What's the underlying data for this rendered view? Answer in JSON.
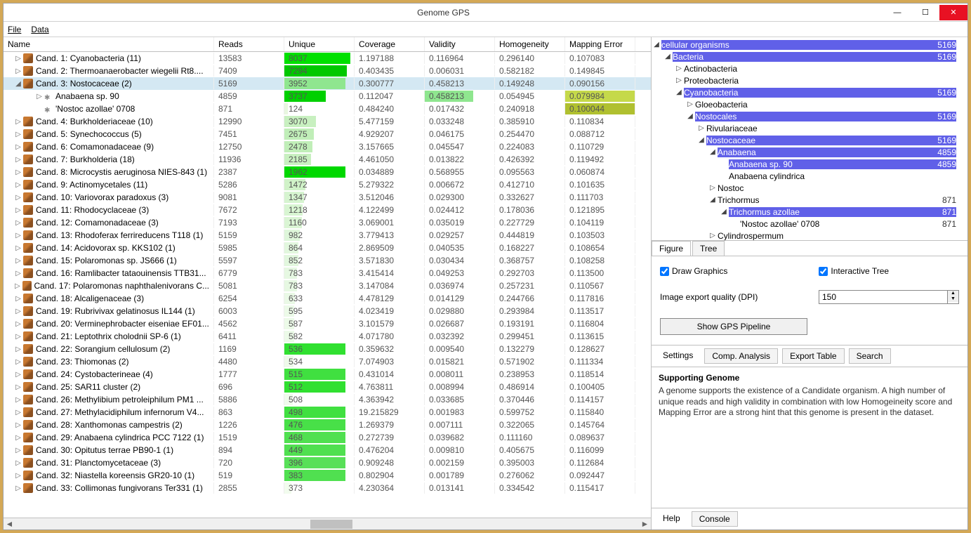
{
  "window": {
    "title": "Genome GPS"
  },
  "menu": {
    "file": "File",
    "data": "Data"
  },
  "columns": {
    "name": "Name",
    "reads": "Reads",
    "unique": "Unique",
    "coverage": "Coverage",
    "validity": "Validity",
    "homogeneity": "Homogeneity",
    "mapping": "Mapping Error"
  },
  "rows": [
    {
      "indent": 0,
      "exp": "▷",
      "icon": "dna",
      "name": "Cand. 1: Cyanobacteria (11)",
      "reads": "13583",
      "unique": "8037",
      "uniqueBg": "#00e000",
      "uniquePct": 95,
      "coverage": "1.197188",
      "validity": "0.116964",
      "homogeneity": "0.296140",
      "mapping": "0.107083"
    },
    {
      "indent": 0,
      "exp": "▷",
      "icon": "dna",
      "name": "Cand. 2: Thermoanaerobacter wiegelii Rt8....",
      "reads": "7409",
      "unique": "7294",
      "uniqueBg": "#00c800",
      "uniquePct": 90,
      "coverage": "0.403435",
      "validity": "0.006031",
      "homogeneity": "0.582182",
      "mapping": "0.149845"
    },
    {
      "indent": 0,
      "exp": "◢",
      "icon": "dna",
      "name": "Cand. 3: Nostocaceae (2)",
      "reads": "5169",
      "unique": "3952",
      "uniqueBg": "#8fe68f",
      "uniquePct": 88,
      "coverage": "0.300777",
      "validity": "0.458213",
      "homogeneity": "0.149248",
      "mapping": "0.090156",
      "selected": true
    },
    {
      "indent": 1,
      "exp": "▷",
      "icon": "leaf",
      "name": "Anabaena sp. 90",
      "reads": "4859",
      "unique": "3737",
      "uniqueBg": "#00d000",
      "uniquePct": 60,
      "coverage": "0.112047",
      "validity": "0.458213",
      "validityBg": "#8fe68f",
      "validityPct": 70,
      "homogeneity": "0.054945",
      "mapping": "0.079984",
      "mappingBg": "#c5d94a",
      "mappingPct": 100
    },
    {
      "indent": 1,
      "exp": "",
      "icon": "leaf",
      "name": "'Nostoc azollae' 0708",
      "reads": "871",
      "unique": "124",
      "uniqueBg": "#e8f7e0",
      "uniquePct": 5,
      "coverage": "0.484240",
      "validity": "0.017432",
      "homogeneity": "0.240918",
      "mapping": "0.100044",
      "mappingBg": "#b0c030",
      "mappingPct": 100
    },
    {
      "indent": 0,
      "exp": "▷",
      "icon": "dna",
      "name": "Cand. 4: Burkholderiaceae (10)",
      "reads": "12990",
      "unique": "3070",
      "uniqueBg": "#c8f0c0",
      "uniquePct": 45,
      "coverage": "5.477159",
      "validity": "0.033248",
      "homogeneity": "0.385910",
      "mapping": "0.110834"
    },
    {
      "indent": 0,
      "exp": "▷",
      "icon": "dna",
      "name": "Cand. 5: Synechococcus (5)",
      "reads": "7451",
      "unique": "2675",
      "uniqueBg": "#c0eeb8",
      "uniquePct": 42,
      "coverage": "4.929207",
      "validity": "0.046175",
      "homogeneity": "0.254470",
      "mapping": "0.088712"
    },
    {
      "indent": 0,
      "exp": "▷",
      "icon": "dna",
      "name": "Cand. 6: Comamonadaceae (9)",
      "reads": "12750",
      "unique": "2478",
      "uniqueBg": "#c0eeb8",
      "uniquePct": 40,
      "coverage": "3.157665",
      "validity": "0.045547",
      "homogeneity": "0.224083",
      "mapping": "0.110729"
    },
    {
      "indent": 0,
      "exp": "▷",
      "icon": "dna",
      "name": "Cand. 7: Burkholderia (18)",
      "reads": "11936",
      "unique": "2185",
      "uniqueBg": "#c8f0c0",
      "uniquePct": 38,
      "coverage": "4.461050",
      "validity": "0.013822",
      "homogeneity": "0.426392",
      "mapping": "0.119492"
    },
    {
      "indent": 0,
      "exp": "▷",
      "icon": "dna",
      "name": "Cand. 8: Microcystis aeruginosa NIES-843 (1)",
      "reads": "2387",
      "unique": "1962",
      "uniqueBg": "#00d800",
      "uniquePct": 88,
      "coverage": "0.034889",
      "validity": "0.568955",
      "homogeneity": "0.095563",
      "mapping": "0.060874"
    },
    {
      "indent": 0,
      "exp": "▷",
      "icon": "dna",
      "name": "Cand. 9: Actinomycetales (11)",
      "reads": "5286",
      "unique": "1472",
      "uniqueBg": "#d0f2c8",
      "uniquePct": 30,
      "coverage": "5.279322",
      "validity": "0.006672",
      "homogeneity": "0.412710",
      "mapping": "0.101635"
    },
    {
      "indent": 0,
      "exp": "▷",
      "icon": "dna",
      "name": "Cand. 10: Variovorax paradoxus (3)",
      "reads": "9081",
      "unique": "1347",
      "uniqueBg": "#d6f4d0",
      "uniquePct": 28,
      "coverage": "3.512046",
      "validity": "0.029300",
      "homogeneity": "0.332627",
      "mapping": "0.111703"
    },
    {
      "indent": 0,
      "exp": "▷",
      "icon": "dna",
      "name": "Cand. 11: Rhodocyclaceae (3)",
      "reads": "7672",
      "unique": "1218",
      "uniqueBg": "#d8f5d2",
      "uniquePct": 26,
      "coverage": "4.122499",
      "validity": "0.024412",
      "homogeneity": "0.178036",
      "mapping": "0.121895"
    },
    {
      "indent": 0,
      "exp": "▷",
      "icon": "dna",
      "name": "Cand. 12: Comamonadaceae (3)",
      "reads": "7193",
      "unique": "1160",
      "uniqueBg": "#daf5d4",
      "uniquePct": 25,
      "coverage": "3.069001",
      "validity": "0.035019",
      "homogeneity": "0.227729",
      "mapping": "0.104119"
    },
    {
      "indent": 0,
      "exp": "▷",
      "icon": "dna",
      "name": "Cand. 13: Rhodoferax ferrireducens T118 (1)",
      "reads": "5159",
      "unique": "982",
      "uniqueBg": "#def6da",
      "uniquePct": 22,
      "coverage": "3.779413",
      "validity": "0.029257",
      "homogeneity": "0.444819",
      "mapping": "0.103503"
    },
    {
      "indent": 0,
      "exp": "▷",
      "icon": "dna",
      "name": "Cand. 14: Acidovorax sp. KKS102 (1)",
      "reads": "5985",
      "unique": "864",
      "uniqueBg": "#e2f7de",
      "uniquePct": 20,
      "coverage": "2.869509",
      "validity": "0.040535",
      "homogeneity": "0.168227",
      "mapping": "0.108654"
    },
    {
      "indent": 0,
      "exp": "▷",
      "icon": "dna",
      "name": "Cand. 15: Polaromonas sp. JS666 (1)",
      "reads": "5597",
      "unique": "852",
      "uniqueBg": "#e2f7de",
      "uniquePct": 20,
      "coverage": "3.571830",
      "validity": "0.030434",
      "homogeneity": "0.368757",
      "mapping": "0.108258"
    },
    {
      "indent": 0,
      "exp": "▷",
      "icon": "dna",
      "name": "Cand. 16: Ramlibacter tataouinensis TTB31...",
      "reads": "6779",
      "unique": "783",
      "uniqueBg": "#e6f8e2",
      "uniquePct": 18,
      "coverage": "3.415414",
      "validity": "0.049253",
      "homogeneity": "0.292703",
      "mapping": "0.113500"
    },
    {
      "indent": 0,
      "exp": "▷",
      "icon": "dna",
      "name": "Cand. 17: Polaromonas naphthalenivorans C...",
      "reads": "5081",
      "unique": "783",
      "uniqueBg": "#e6f8e2",
      "uniquePct": 18,
      "coverage": "3.147084",
      "validity": "0.036974",
      "homogeneity": "0.257231",
      "mapping": "0.110567"
    },
    {
      "indent": 0,
      "exp": "▷",
      "icon": "dna",
      "name": "Cand. 18: Alcaligenaceae (3)",
      "reads": "6254",
      "unique": "633",
      "uniqueBg": "#eaf9e6",
      "uniquePct": 15,
      "coverage": "4.478129",
      "validity": "0.014129",
      "homogeneity": "0.244766",
      "mapping": "0.117816"
    },
    {
      "indent": 0,
      "exp": "▷",
      "icon": "dna",
      "name": "Cand. 19: Rubrivivax gelatinosus IL144 (1)",
      "reads": "6003",
      "unique": "595",
      "uniqueBg": "#ecfae8",
      "uniquePct": 14,
      "coverage": "4.023419",
      "validity": "0.029880",
      "homogeneity": "0.293984",
      "mapping": "0.113517"
    },
    {
      "indent": 0,
      "exp": "▷",
      "icon": "dna",
      "name": "Cand. 20: Verminephrobacter eiseniae EF01...",
      "reads": "4562",
      "unique": "587",
      "uniqueBg": "#ecfae8",
      "uniquePct": 14,
      "coverage": "3.101579",
      "validity": "0.026687",
      "homogeneity": "0.193191",
      "mapping": "0.116804"
    },
    {
      "indent": 0,
      "exp": "▷",
      "icon": "dna",
      "name": "Cand. 21: Leptothrix cholodnii SP-6 (1)",
      "reads": "6411",
      "unique": "582",
      "uniqueBg": "#ecfae8",
      "uniquePct": 14,
      "coverage": "4.071780",
      "validity": "0.032392",
      "homogeneity": "0.299451",
      "mapping": "0.113615"
    },
    {
      "indent": 0,
      "exp": "▷",
      "icon": "dna",
      "name": "Cand. 22: Sorangium cellulosum (2)",
      "reads": "1169",
      "unique": "536",
      "uniqueBg": "#30e030",
      "uniquePct": 88,
      "coverage": "0.359632",
      "validity": "0.009540",
      "homogeneity": "0.132279",
      "mapping": "0.128627"
    },
    {
      "indent": 0,
      "exp": "▷",
      "icon": "dna",
      "name": "Cand. 23: Thiomonas (2)",
      "reads": "4480",
      "unique": "534",
      "uniqueBg": "#eefaea",
      "uniquePct": 13,
      "coverage": "7.074903",
      "validity": "0.015821",
      "homogeneity": "0.571902",
      "mapping": "0.111334"
    },
    {
      "indent": 0,
      "exp": "▷",
      "icon": "dna",
      "name": "Cand. 24: Cystobacterineae (4)",
      "reads": "1777",
      "unique": "515",
      "uniqueBg": "#40e040",
      "uniquePct": 88,
      "coverage": "0.431014",
      "validity": "0.008011",
      "homogeneity": "0.238953",
      "mapping": "0.118514"
    },
    {
      "indent": 0,
      "exp": "▷",
      "icon": "dna",
      "name": "Cand. 25: SAR11 cluster (2)",
      "reads": "696",
      "unique": "512",
      "uniqueBg": "#30e030",
      "uniquePct": 88,
      "coverage": "4.763811",
      "validity": "0.008994",
      "homogeneity": "0.486914",
      "mapping": "0.100405"
    },
    {
      "indent": 0,
      "exp": "▷",
      "icon": "dna",
      "name": "Cand. 26: Methylibium petroleiphilum PM1 ...",
      "reads": "5886",
      "unique": "508",
      "uniqueBg": "#f0fbec",
      "uniquePct": 12,
      "coverage": "4.363942",
      "validity": "0.033685",
      "homogeneity": "0.370446",
      "mapping": "0.114157"
    },
    {
      "indent": 0,
      "exp": "▷",
      "icon": "dna",
      "name": "Cand. 27: Methylacidiphilum infernorum V4...",
      "reads": "863",
      "unique": "498",
      "uniqueBg": "#40e040",
      "uniquePct": 88,
      "coverage": "19.215829",
      "validity": "0.001983",
      "homogeneity": "0.599752",
      "mapping": "0.115840"
    },
    {
      "indent": 0,
      "exp": "▷",
      "icon": "dna",
      "name": "Cand. 28: Xanthomonas campestris (2)",
      "reads": "1226",
      "unique": "476",
      "uniqueBg": "#48e048",
      "uniquePct": 88,
      "coverage": "1.269379",
      "validity": "0.007111",
      "homogeneity": "0.322065",
      "mapping": "0.145764"
    },
    {
      "indent": 0,
      "exp": "▷",
      "icon": "dna",
      "name": "Cand. 29: Anabaena cylindrica PCC 7122 (1)",
      "reads": "1519",
      "unique": "468",
      "uniqueBg": "#50e050",
      "uniquePct": 88,
      "coverage": "0.272739",
      "validity": "0.039682",
      "homogeneity": "0.111160",
      "mapping": "0.089637"
    },
    {
      "indent": 0,
      "exp": "▷",
      "icon": "dna",
      "name": "Cand. 30: Opitutus terrae PB90-1 (1)",
      "reads": "894",
      "unique": "449",
      "uniqueBg": "#50e050",
      "uniquePct": 88,
      "coverage": "0.476204",
      "validity": "0.009810",
      "homogeneity": "0.405675",
      "mapping": "0.116099"
    },
    {
      "indent": 0,
      "exp": "▷",
      "icon": "dna",
      "name": "Cand. 31: Planctomycetaceae (3)",
      "reads": "720",
      "unique": "396",
      "uniqueBg": "#58e058",
      "uniquePct": 88,
      "coverage": "0.909248",
      "validity": "0.002159",
      "homogeneity": "0.395003",
      "mapping": "0.112684"
    },
    {
      "indent": 0,
      "exp": "▷",
      "icon": "dna",
      "name": "Cand. 32: Niastella koreensis GR20-10 (1)",
      "reads": "519",
      "unique": "383",
      "uniqueBg": "#50e050",
      "uniquePct": 88,
      "coverage": "0.802904",
      "validity": "0.001789",
      "homogeneity": "0.276062",
      "mapping": "0.092447"
    },
    {
      "indent": 0,
      "exp": "▷",
      "icon": "dna",
      "name": "Cand. 33: Collimonas fungivorans Ter331 (1)",
      "reads": "2855",
      "unique": "373",
      "uniqueBg": "#f2fcee",
      "uniquePct": 10,
      "coverage": "4.230364",
      "validity": "0.013141",
      "homogeneity": "0.334542",
      "mapping": "0.115417"
    }
  ],
  "tree": [
    {
      "indent": 0,
      "exp": "◢",
      "label": "cellular organisms",
      "count": "5169",
      "hl": true
    },
    {
      "indent": 1,
      "exp": "◢",
      "label": "Bacteria",
      "count": "5169",
      "hl": true
    },
    {
      "indent": 2,
      "exp": "▷",
      "label": "Actinobacteria",
      "count": ""
    },
    {
      "indent": 2,
      "exp": "▷",
      "label": "Proteobacteria",
      "count": ""
    },
    {
      "indent": 2,
      "exp": "◢",
      "label": "Cyanobacteria",
      "count": "5169",
      "hl": true
    },
    {
      "indent": 3,
      "exp": "▷",
      "label": "Gloeobacteria",
      "count": ""
    },
    {
      "indent": 3,
      "exp": "◢",
      "label": "Nostocales",
      "count": "5169",
      "hl": true
    },
    {
      "indent": 4,
      "exp": "▷",
      "label": "Rivulariaceae",
      "count": ""
    },
    {
      "indent": 4,
      "exp": "◢",
      "label": "Nostocaceae",
      "count": "5169",
      "hl": true
    },
    {
      "indent": 5,
      "exp": "◢",
      "label": "Anabaena",
      "count": "4859",
      "hl": true
    },
    {
      "indent": 6,
      "exp": "",
      "label": "Anabaena sp. 90",
      "count": "4859",
      "hl": true
    },
    {
      "indent": 6,
      "exp": "",
      "label": "Anabaena cylindrica",
      "count": ""
    },
    {
      "indent": 5,
      "exp": "▷",
      "label": "Nostoc",
      "count": ""
    },
    {
      "indent": 5,
      "exp": "◢",
      "label": "Trichormus",
      "count": "871"
    },
    {
      "indent": 6,
      "exp": "◢",
      "label": "Trichormus azollae",
      "count": "871",
      "hl": true
    },
    {
      "indent": 7,
      "exp": "",
      "label": "'Nostoc azollae' 0708",
      "count": "871"
    },
    {
      "indent": 5,
      "exp": "▷",
      "label": "Cylindrospermum",
      "count": ""
    }
  ],
  "rightTabs": {
    "figure": "Figure",
    "tree": "Tree"
  },
  "options": {
    "drawGraphics": "Draw Graphics",
    "interactiveTree": "Interactive Tree",
    "dpiLabel": "Image export quality (DPI)",
    "dpiValue": "150",
    "pipelineBtn": "Show GPS Pipeline"
  },
  "sideTabs": {
    "settings": "Settings",
    "comp": "Comp. Analysis",
    "export": "Export Table",
    "search": "Search"
  },
  "info": {
    "header": "Supporting Genome",
    "body": "A genome supports the existence of a Candidate organism. A high number of unique reads and high validity in combination with low Homogeineity score and Mapping Error are a strong hint that this genome is present in the dataset."
  },
  "bottomTabs": {
    "help": "Help",
    "console": "Console"
  }
}
